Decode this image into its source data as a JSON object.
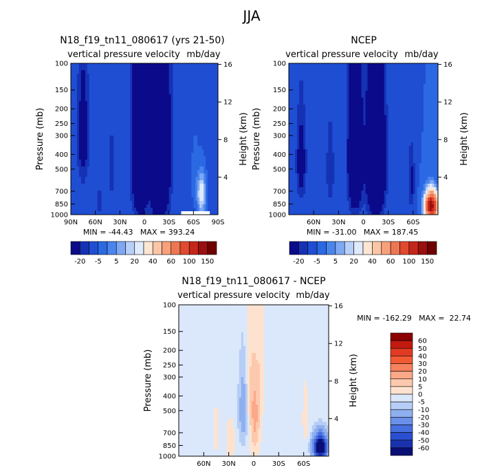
{
  "figure_title": "JJA",
  "chart_data": [
    {
      "type": "heatmap",
      "id": "model",
      "title": "N18_f19_tn11_080617 (yrs 21-50)",
      "subtitle": "vertical pressure velocity",
      "units": "mb/day",
      "ylabel": "Pressure (mb)",
      "y2label": "Height (km)",
      "x_ticks": [
        "90N",
        "60N",
        "30N",
        "0",
        "30S",
        "60S",
        "90S"
      ],
      "x_tick_lat": [
        90,
        60,
        30,
        0,
        -30,
        -60,
        -90
      ],
      "xlim": [
        90,
        -90
      ],
      "y_ticks": [
        "100",
        "150",
        "200",
        "250",
        "300",
        "400",
        "500",
        "700",
        "850",
        "1000"
      ],
      "y_tick_p": [
        100,
        150,
        200,
        250,
        300,
        400,
        500,
        700,
        850,
        1000
      ],
      "height_ticks": [
        "16",
        "12",
        "8",
        "4"
      ],
      "height_tick_km": [
        16,
        12,
        8,
        4
      ],
      "stats": "MIN = -44.43   MAX = 393.24",
      "colorbar_labels": [
        "-20",
        "-5",
        "5",
        "20",
        "40",
        "60",
        "100",
        "150"
      ],
      "colorbar_colors": [
        "#0a0a8a",
        "#1632b4",
        "#1f4ed3",
        "#2b69e3",
        "#4a85ee",
        "#7ea8f3",
        "#b8d0f8",
        "#dfeafc",
        "#fde5d4",
        "#fbc6a6",
        "#f7a07a",
        "#ee7652",
        "#e04a2f",
        "#c5261a",
        "#9c0f0f",
        "#6e0000"
      ],
      "features": [
        {
          "lat": 5,
          "p": 420,
          "wlat": 8,
          "wp": 450,
          "v": -45
        },
        {
          "lat": -18,
          "p": 400,
          "wlat": 10,
          "wp": 480,
          "v": -60
        },
        {
          "lat": -12,
          "p": 400,
          "wlat": 8,
          "wp": 420,
          "v": 7
        },
        {
          "lat": 40,
          "p": 500,
          "wlat": 5,
          "wp": 300,
          "v": -5
        },
        {
          "lat": 55,
          "p": 820,
          "wlat": 3,
          "wp": 130,
          "v": -8
        },
        {
          "lat": 75,
          "p": 300,
          "wlat": 6,
          "wp": 250,
          "v": -15
        },
        {
          "lat": -62,
          "p": 560,
          "wlat": 5,
          "wp": 320,
          "v": 4
        },
        {
          "lat": -70,
          "p": 730,
          "wlat": 5,
          "wp": 220,
          "v": 28
        }
      ],
      "missing": {
        "lat_from": -45,
        "lat_to": -80,
        "p_from": 960
      },
      "base_value": -12
    },
    {
      "type": "heatmap",
      "id": "obs",
      "title": "NCEP",
      "subtitle": "vertical pressure velocity",
      "units": "mb/day",
      "ylabel": "Pressure (mb)",
      "y2label": "Height (km)",
      "x_ticks": [
        "60N",
        "30N",
        "0",
        "30S",
        "60S"
      ],
      "x_tick_lat": [
        60,
        30,
        0,
        -30,
        -60
      ],
      "xlim": [
        90,
        -90
      ],
      "y_ticks": [
        "100",
        "150",
        "200",
        "250",
        "300",
        "400",
        "500",
        "700",
        "850",
        "1000"
      ],
      "y_tick_p": [
        100,
        150,
        200,
        250,
        300,
        400,
        500,
        700,
        850,
        1000
      ],
      "height_ticks": [
        "16",
        "12",
        "8",
        "4"
      ],
      "height_tick_km": [
        16,
        12,
        8,
        4
      ],
      "stats": "MIN = -31.00   MAX = 187.45",
      "colorbar_labels": [
        "-20",
        "-5",
        "5",
        "20",
        "40",
        "60",
        "100",
        "150"
      ],
      "colorbar_colors": [
        "#0a0a8a",
        "#1632b4",
        "#1f4ed3",
        "#2b69e3",
        "#4a85ee",
        "#7ea8f3",
        "#b8d0f8",
        "#dfeafc",
        "#fde5d4",
        "#fbc6a6",
        "#f7a07a",
        "#ee7652",
        "#e04a2f",
        "#c5261a",
        "#9c0f0f",
        "#6e0000"
      ],
      "features": [
        {
          "lat": 10,
          "p": 420,
          "wlat": 8,
          "wp": 450,
          "v": -35
        },
        {
          "lat": -15,
          "p": 450,
          "wlat": 10,
          "wp": 480,
          "v": -45
        },
        {
          "lat": 40,
          "p": 500,
          "wlat": 5,
          "wp": 320,
          "v": -10
        },
        {
          "lat": 75,
          "p": 450,
          "wlat": 6,
          "wp": 300,
          "v": -16
        },
        {
          "lat": -58,
          "p": 600,
          "wlat": 4,
          "wp": 300,
          "v": -12
        },
        {
          "lat": -82,
          "p": 880,
          "wlat": 7,
          "wp": 170,
          "v": 150
        }
      ],
      "base_value": -10
    },
    {
      "type": "heatmap",
      "id": "diff",
      "title": "N18_f19_tn11_080617 - NCEP",
      "subtitle": "vertical pressure velocity",
      "units": "mb/day",
      "ylabel": "Pressure (mb)",
      "y2label": "Height (km)",
      "x_ticks": [
        "60N",
        "30N",
        "0",
        "30S",
        "60S"
      ],
      "x_tick_lat": [
        60,
        30,
        0,
        -30,
        -60
      ],
      "xlim": [
        90,
        -90
      ],
      "y_ticks": [
        "100",
        "150",
        "200",
        "250",
        "300",
        "400",
        "500",
        "700",
        "850",
        "1000"
      ],
      "y_tick_p": [
        100,
        150,
        200,
        250,
        300,
        400,
        500,
        700,
        850,
        1000
      ],
      "height_ticks": [
        "16",
        "12",
        "8",
        "4"
      ],
      "height_tick_km": [
        16,
        12,
        8,
        4
      ],
      "stats": "MIN = -162.29   MAX =  22.74",
      "colorbar_labels": [
        "60",
        "50",
        "40",
        "30",
        "20",
        "10",
        "5",
        "0",
        "-5",
        "-10",
        "-20",
        "-30",
        "-40",
        "-50",
        "-60"
      ],
      "colorbar_colors": [
        "#8b0000",
        "#c21a0f",
        "#e03b22",
        "#f25a34",
        "#f7825e",
        "#fba888",
        "#fcc9ae",
        "#fde3cf",
        "#dbe8fb",
        "#b6cdf5",
        "#8fb0ef",
        "#6a90e8",
        "#466fe0",
        "#2a4fd0",
        "#1a32ae",
        "#0a0f75"
      ],
      "features": [
        {
          "lat": 5,
          "p": 420,
          "wlat": 6,
          "wp": 420,
          "v": 8
        },
        {
          "lat": -8,
          "p": 260,
          "wlat": 4,
          "wp": 400,
          "v": 5
        },
        {
          "lat": 12,
          "p": 500,
          "wlat": 6,
          "wp": 300,
          "v": -15
        },
        {
          "lat": -2,
          "p": 550,
          "wlat": 5,
          "wp": 350,
          "v": 12
        },
        {
          "lat": 28,
          "p": 800,
          "wlat": 5,
          "wp": 220,
          "v": 7
        },
        {
          "lat": 45,
          "p": 700,
          "wlat": 3,
          "wp": 300,
          "v": 4
        },
        {
          "lat": -62,
          "p": 560,
          "wlat": 4,
          "wp": 300,
          "v": 4
        },
        {
          "lat": -80,
          "p": 880,
          "wlat": 8,
          "wp": 170,
          "v": -80
        }
      ],
      "base_value": -2
    }
  ]
}
